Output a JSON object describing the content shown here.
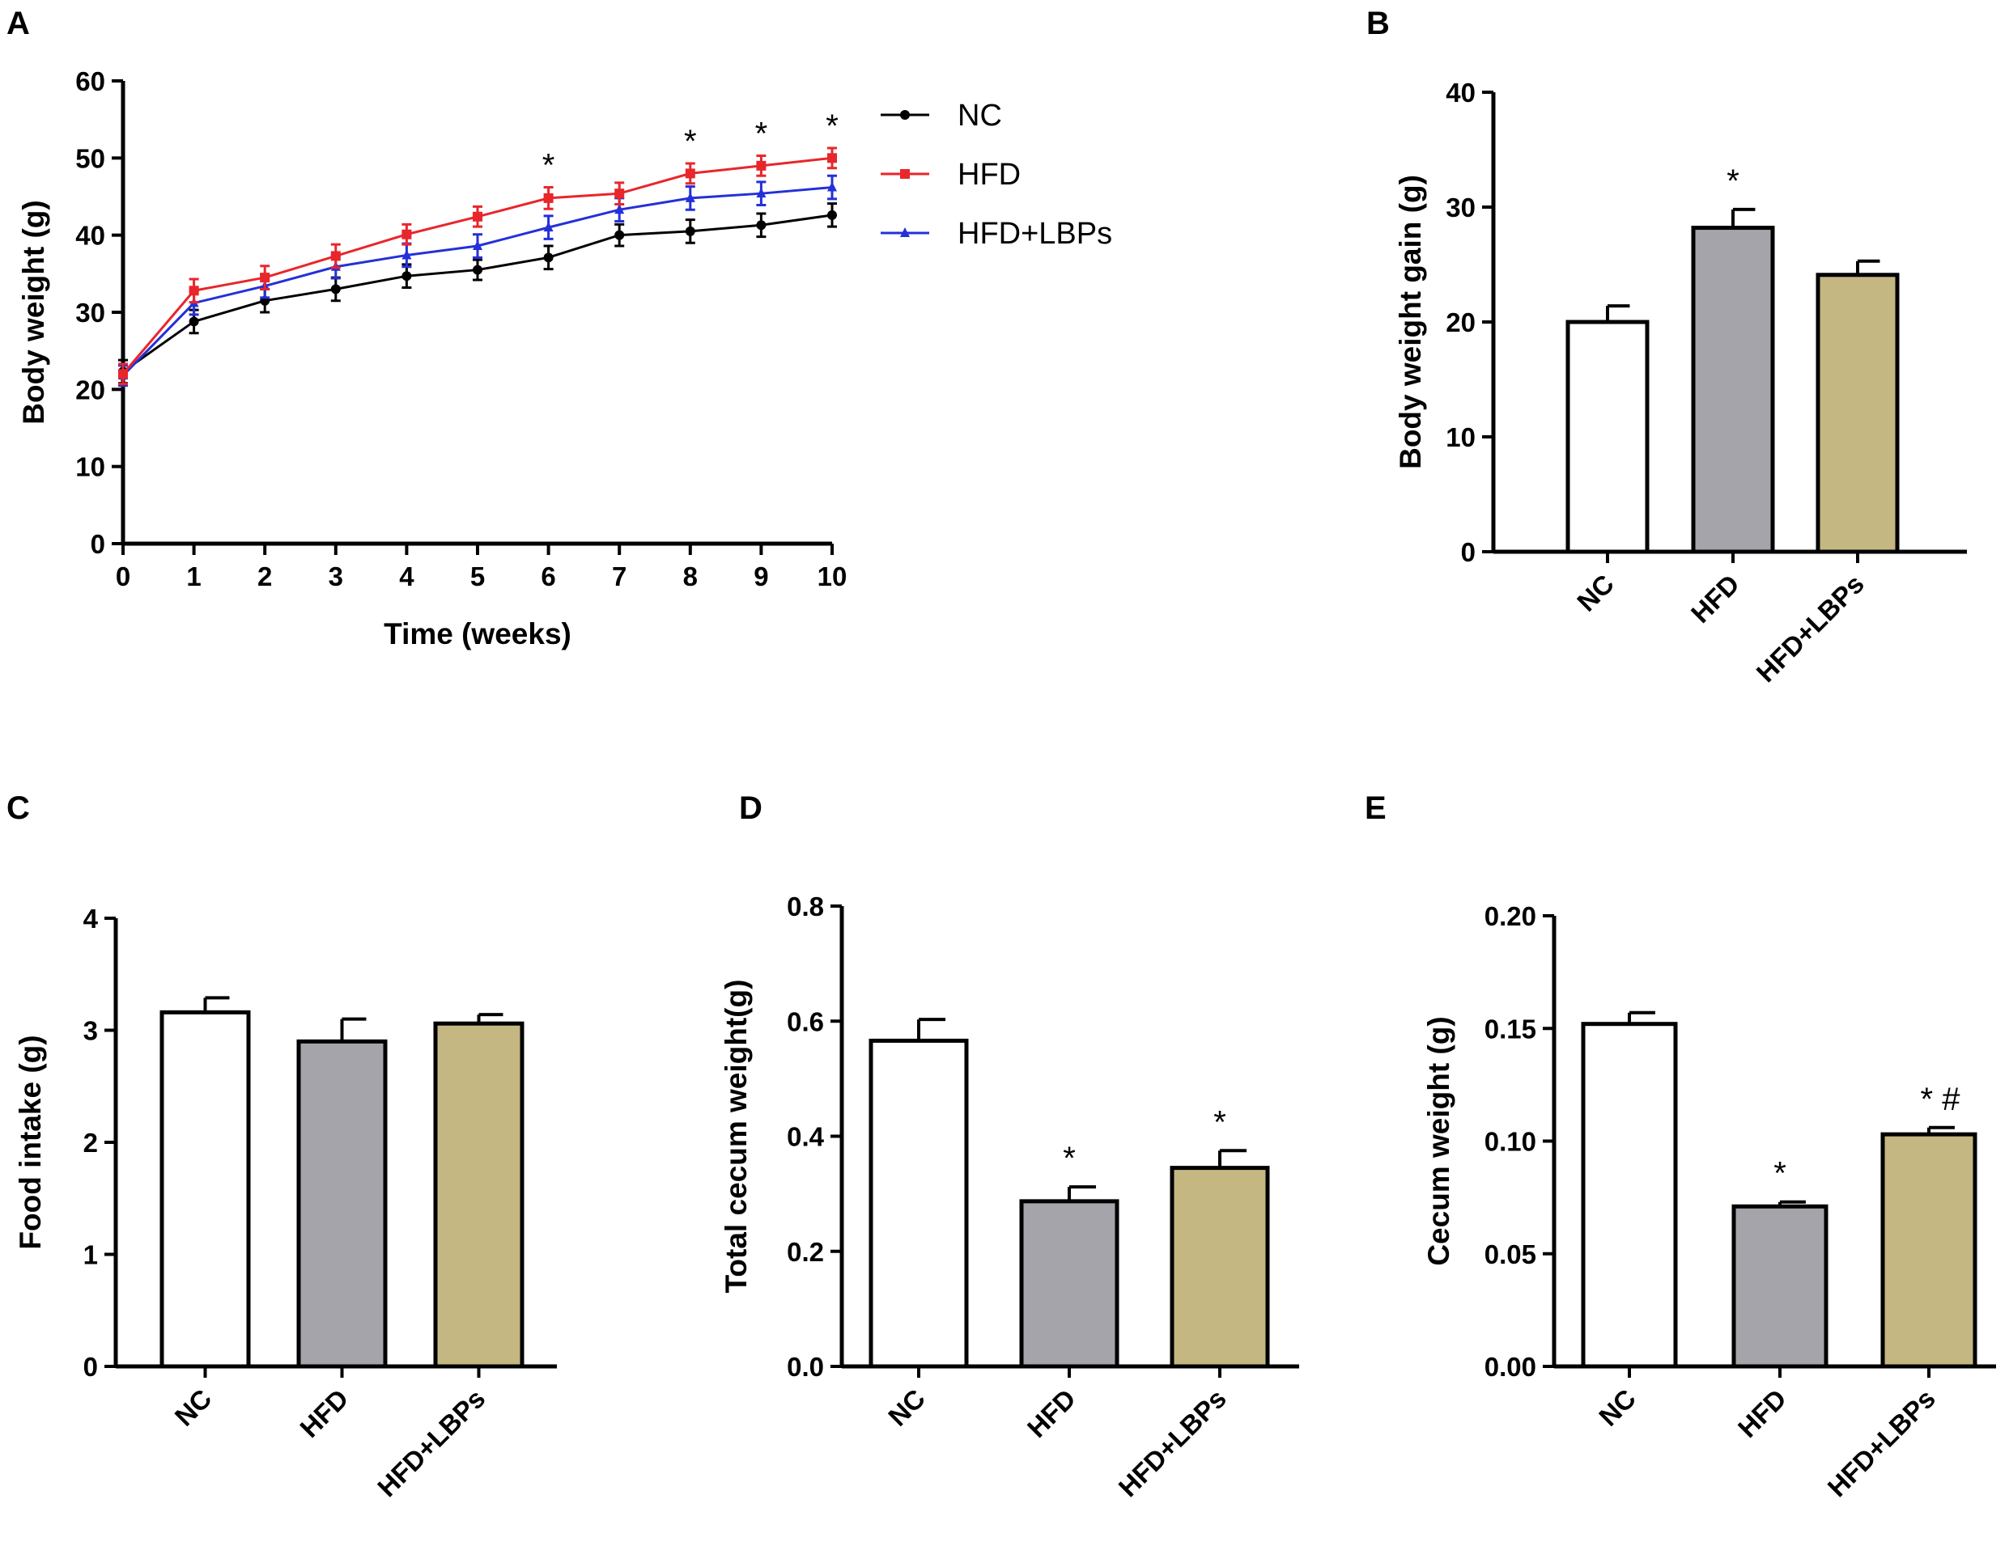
{
  "panels": {
    "A": {
      "letter": "A"
    },
    "B": {
      "letter": "B"
    },
    "C": {
      "letter": "C"
    },
    "D": {
      "letter": "D"
    },
    "E": {
      "letter": "E"
    }
  },
  "colors": {
    "NC": "#000000",
    "HFD": "#e8262b",
    "HFD+LBPs": "#2430d8",
    "bar_NC": "#ffffff",
    "bar_HFD": "#a5a4aa",
    "bar_HFD+LBPs": "#c4b781"
  },
  "chart_data": [
    {
      "panel": "A",
      "type": "line",
      "xlabel": "Time (weeks)",
      "ylabel": "Body weight (g)",
      "x": [
        0,
        1,
        2,
        3,
        4,
        5,
        6,
        7,
        8,
        9,
        10
      ],
      "x_ticks": [
        "0",
        "1",
        "2",
        "3",
        "4",
        "5",
        "6",
        "7",
        "8",
        "9",
        "10"
      ],
      "xlim": [
        0,
        10
      ],
      "ylim": [
        0,
        60
      ],
      "y_ticks": [
        "0",
        "10",
        "20",
        "30",
        "40",
        "50",
        "60"
      ],
      "series": [
        {
          "name": "NC",
          "marker": "circle",
          "values": [
            22.3,
            28.8,
            31.5,
            33.0,
            34.7,
            35.5,
            37.1,
            40.0,
            40.5,
            41.3,
            42.6
          ],
          "errors": [
            1.5,
            1.5,
            1.5,
            1.5,
            1.5,
            1.3,
            1.5,
            1.4,
            1.5,
            1.5,
            1.5
          ]
        },
        {
          "name": "HFD",
          "marker": "square",
          "values": [
            22.0,
            32.8,
            34.5,
            37.3,
            40.1,
            42.4,
            44.8,
            45.4,
            48.0,
            49.0,
            50.0
          ],
          "errors": [
            1.3,
            1.5,
            1.5,
            1.5,
            1.3,
            1.3,
            1.4,
            1.4,
            1.3,
            1.3,
            1.3
          ]
        },
        {
          "name": "HFD+LBPs",
          "marker": "triangle",
          "values": [
            21.8,
            31.2,
            33.4,
            35.9,
            37.4,
            38.6,
            41.0,
            43.3,
            44.8,
            45.4,
            46.2
          ],
          "errors": [
            1.3,
            1.5,
            1.5,
            1.5,
            1.5,
            1.5,
            1.5,
            1.5,
            1.5,
            1.5,
            1.5
          ]
        }
      ],
      "annotations": [
        {
          "x": 6,
          "text": "*"
        },
        {
          "x": 8,
          "text": "*"
        },
        {
          "x": 9,
          "text": "*"
        },
        {
          "x": 10,
          "text": "*"
        }
      ],
      "legend": [
        "NC",
        "HFD",
        "HFD+LBPs"
      ],
      "legend_position": "top-right"
    },
    {
      "panel": "B",
      "type": "bar",
      "categories": [
        "NC",
        "HFD",
        "HFD+LBPs"
      ],
      "values": [
        20.0,
        28.2,
        24.1
      ],
      "errors": [
        1.4,
        1.6,
        1.2
      ],
      "annotations": [
        "",
        "*",
        ""
      ],
      "ylabel": "Body weight gain (g)",
      "ylim": [
        0,
        40
      ],
      "y_ticks": [
        "0",
        "10",
        "20",
        "30",
        "40"
      ]
    },
    {
      "panel": "C",
      "type": "bar",
      "categories": [
        "NC",
        "HFD",
        "HFD+LBPs"
      ],
      "values": [
        3.16,
        2.9,
        3.06
      ],
      "errors": [
        0.13,
        0.2,
        0.08
      ],
      "annotations": [
        "",
        "",
        ""
      ],
      "ylabel": "Food intake (g)",
      "ylim": [
        0,
        4
      ],
      "y_ticks": [
        "0",
        "1",
        "2",
        "3",
        "4"
      ]
    },
    {
      "panel": "D",
      "type": "bar",
      "categories": [
        "NC",
        "HFD",
        "HFD+LBPs"
      ],
      "values": [
        0.566,
        0.287,
        0.345
      ],
      "errors": [
        0.037,
        0.025,
        0.03
      ],
      "annotations": [
        "",
        "*",
        "*"
      ],
      "ylabel": "Total cecum weight(g)",
      "ylim": [
        0,
        0.8
      ],
      "y_ticks": [
        "0.0",
        "0.2",
        "0.4",
        "0.6",
        "0.8"
      ]
    },
    {
      "panel": "E",
      "type": "bar",
      "categories": [
        "NC",
        "HFD",
        "HFD+LBPs"
      ],
      "values": [
        0.152,
        0.071,
        0.103
      ],
      "errors": [
        0.005,
        0.002,
        0.003
      ],
      "annotations": [
        "",
        "*",
        "* #"
      ],
      "ylabel": "Cecum weight (g)",
      "ylim": [
        0,
        0.2
      ],
      "y_ticks": [
        "0.00",
        "0.05",
        "0.10",
        "0.15",
        "0.20"
      ]
    }
  ]
}
